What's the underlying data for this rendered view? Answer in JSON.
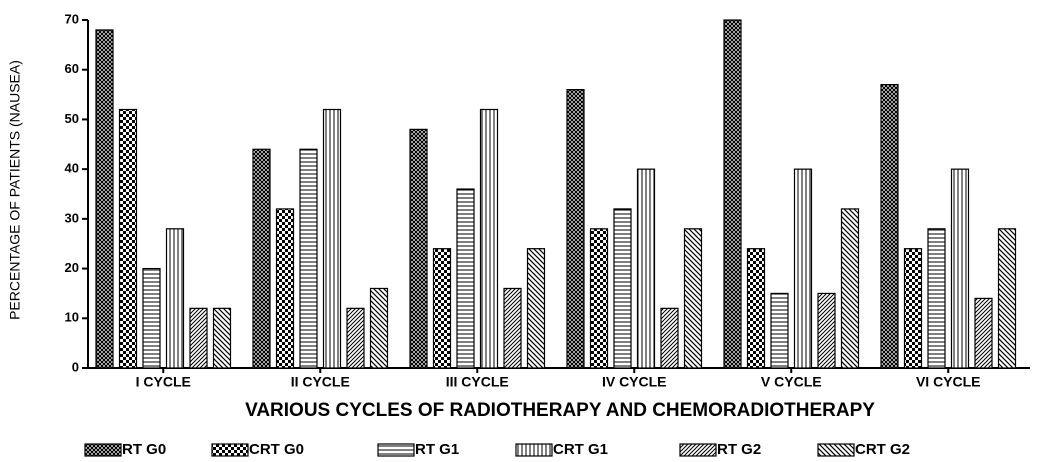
{
  "chart_data": {
    "type": "bar",
    "y_label": "PERCENTAGE OF PATIENTS (NAUSEA)",
    "x_label": "VARIOUS CYCLES OF RADIOTHERAPY AND CHEMORADIOTHERAPY",
    "categories": [
      "I CYCLE",
      "II CYCLE",
      "III CYCLE",
      "IV CYCLE",
      "V CYCLE",
      "VI CYCLE"
    ],
    "series": [
      {
        "name": "RT G0",
        "color": "#000000",
        "pattern": "crosshatch",
        "values": [
          68,
          44,
          48,
          56,
          70,
          57
        ]
      },
      {
        "name": "CRT G0",
        "color": "#000000",
        "pattern": "checker",
        "values": [
          52,
          32,
          24,
          28,
          24,
          24
        ]
      },
      {
        "name": "RT G1",
        "color": "#000000",
        "pattern": "horizontal",
        "values": [
          20,
          44,
          36,
          32,
          15,
          28
        ]
      },
      {
        "name": "CRT G1",
        "color": "#000000",
        "pattern": "vertical",
        "values": [
          28,
          52,
          52,
          40,
          40,
          40
        ]
      },
      {
        "name": "RT G2",
        "color": "#000000",
        "pattern": "diagonal-up",
        "values": [
          12,
          12,
          16,
          12,
          15,
          14
        ]
      },
      {
        "name": "CRT G2",
        "color": "#000000",
        "pattern": "diagonal-down",
        "values": [
          12,
          16,
          24,
          28,
          32,
          28
        ]
      }
    ],
    "ylim": [
      0,
      70
    ],
    "yticks": [
      0,
      10,
      20,
      30,
      40,
      50,
      60,
      70
    ],
    "grid": false,
    "legend": "bottom"
  }
}
